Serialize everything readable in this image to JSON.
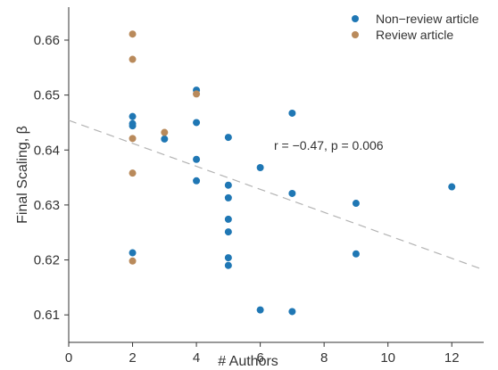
{
  "chart_data": {
    "type": "scatter",
    "xlabel": "# Authors",
    "ylabel": "Final Scaling, β",
    "xlim": [
      0,
      13
    ],
    "ylim": [
      0.605,
      0.666
    ],
    "xticks": [
      "0",
      "2",
      "4",
      "6",
      "8",
      "10",
      "12"
    ],
    "yticks": [
      "0.61",
      "0.62",
      "0.63",
      "0.64",
      "0.65",
      "0.66"
    ],
    "legend_position": "top-right",
    "annotation": "r = −0.47, p = 0.006",
    "trendline": {
      "style": "dashed",
      "color": "#b3b3b3",
      "from": [
        0,
        0.6454
      ],
      "to": [
        13,
        0.6182
      ]
    },
    "series": [
      {
        "name": "Non−review article",
        "color": "#1f77b4",
        "points": [
          [
            2,
            0.6461
          ],
          [
            2,
            0.6448
          ],
          [
            2,
            0.6444
          ],
          [
            2,
            0.6213
          ],
          [
            3,
            0.642
          ],
          [
            4,
            0.6509
          ],
          [
            4,
            0.645
          ],
          [
            4,
            0.6383
          ],
          [
            4,
            0.6344
          ],
          [
            5,
            0.6423
          ],
          [
            5,
            0.6336
          ],
          [
            5,
            0.6313
          ],
          [
            5,
            0.6274
          ],
          [
            5,
            0.6251
          ],
          [
            5,
            0.6204
          ],
          [
            5,
            0.619
          ],
          [
            6,
            0.6368
          ],
          [
            6,
            0.6109
          ],
          [
            7,
            0.6467
          ],
          [
            7,
            0.6321
          ],
          [
            7,
            0.6106
          ],
          [
            9,
            0.6303
          ],
          [
            9,
            0.6211
          ],
          [
            12,
            0.6333
          ]
        ]
      },
      {
        "name": "Review article",
        "color": "#b98a5b",
        "points": [
          [
            2,
            0.6611
          ],
          [
            2,
            0.6565
          ],
          [
            2,
            0.6421
          ],
          [
            2,
            0.6358
          ],
          [
            2,
            0.6198
          ],
          [
            3,
            0.6432
          ],
          [
            4,
            0.6502
          ]
        ]
      }
    ]
  }
}
